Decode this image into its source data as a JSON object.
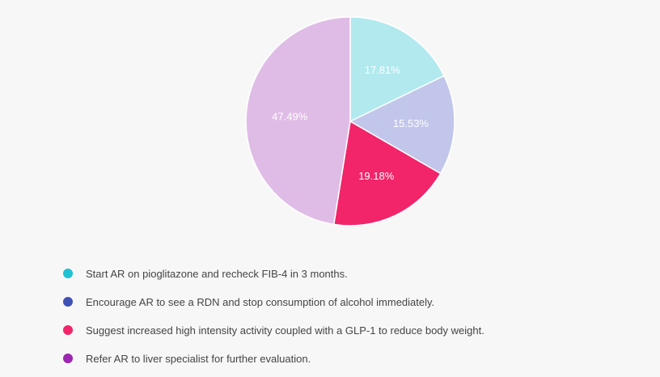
{
  "chart_data": {
    "type": "pie",
    "title": "",
    "slices": [
      {
        "name": "Start AR on pioglitazone and recheck FIB-4 in 3 months.",
        "value": 17.81,
        "label": "17.81%",
        "slice_color": "#b1e9ee",
        "legend_color": "#1fc2d2"
      },
      {
        "name": "Encourage AR to see a RDN and stop consumption of alcohol immediately.",
        "value": 15.53,
        "label": "15.53%",
        "slice_color": "#c1c6ea",
        "legend_color": "#3f51b5"
      },
      {
        "name": "Suggest increased high intensity activity coupled with a GLP-1 to reduce body weight.",
        "value": 19.18,
        "label": "19.18%",
        "slice_color": "#f2246a",
        "legend_color": "#f2246a"
      },
      {
        "name": "Refer AR to liver specialist for further evaluation.",
        "value": 47.49,
        "label": "47.49%",
        "slice_color": "#dfbce6",
        "legend_color": "#9c27b0"
      }
    ],
    "start_angle_deg": 0,
    "direction": "clockwise",
    "legend_placement": "bottom-left"
  }
}
